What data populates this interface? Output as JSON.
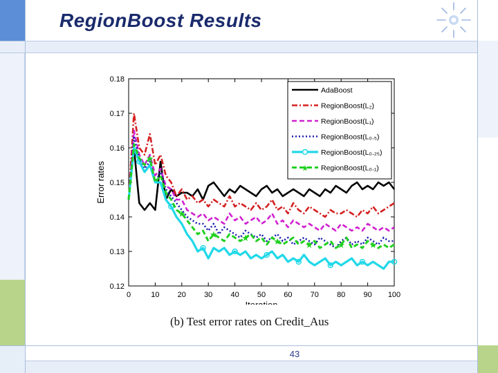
{
  "slide": {
    "title": "RegionBoost Results",
    "page_number": "43",
    "colors": {
      "accent_blue": "#5b8ed6",
      "accent_green": "#b8d48a",
      "title": "#1a2a6c"
    }
  },
  "chart_data": {
    "type": "line",
    "caption": "(b) Test error rates on Credit_Aus",
    "xlabel": "Iteration",
    "ylabel": "Error rates",
    "xlim": [
      0,
      100
    ],
    "ylim": [
      0.12,
      0.18
    ],
    "xticks": [
      "0",
      "10",
      "20",
      "30",
      "40",
      "50",
      "60",
      "70",
      "80",
      "90",
      "100"
    ],
    "yticks": [
      "0.12",
      "0.13",
      "0.14",
      "0.15",
      "0.16",
      "0.17",
      "0.18"
    ],
    "legend_position": "top-right",
    "x": [
      0,
      2,
      4,
      6,
      8,
      10,
      12,
      14,
      16,
      18,
      20,
      22,
      24,
      26,
      28,
      30,
      32,
      34,
      36,
      38,
      40,
      42,
      44,
      46,
      48,
      50,
      52,
      54,
      56,
      58,
      60,
      62,
      64,
      66,
      68,
      70,
      72,
      74,
      76,
      78,
      80,
      82,
      84,
      86,
      88,
      90,
      92,
      94,
      96,
      98,
      100
    ],
    "series": [
      {
        "name": "AdaBoost",
        "style": "solid",
        "color": "#000000",
        "values": [
          0.145,
          0.16,
          0.144,
          0.142,
          0.144,
          0.142,
          0.156,
          0.145,
          0.148,
          0.146,
          0.147,
          0.147,
          0.146,
          0.148,
          0.145,
          0.149,
          0.15,
          0.148,
          0.146,
          0.148,
          0.147,
          0.149,
          0.148,
          0.147,
          0.146,
          0.148,
          0.149,
          0.147,
          0.148,
          0.146,
          0.147,
          0.148,
          0.147,
          0.146,
          0.148,
          0.147,
          0.146,
          0.148,
          0.147,
          0.149,
          0.148,
          0.147,
          0.149,
          0.15,
          0.148,
          0.149,
          0.148,
          0.15,
          0.149,
          0.15,
          0.148
        ]
      },
      {
        "name": "RegionBoost(L₂)",
        "style": "dashdot",
        "color": "#d42020",
        "values": [
          0.145,
          0.17,
          0.16,
          0.158,
          0.164,
          0.155,
          0.158,
          0.152,
          0.15,
          0.146,
          0.148,
          0.145,
          0.146,
          0.144,
          0.145,
          0.143,
          0.145,
          0.144,
          0.143,
          0.146,
          0.143,
          0.144,
          0.143,
          0.142,
          0.144,
          0.142,
          0.143,
          0.145,
          0.142,
          0.143,
          0.141,
          0.144,
          0.142,
          0.141,
          0.143,
          0.142,
          0.141,
          0.14,
          0.142,
          0.141,
          0.141,
          0.142,
          0.141,
          0.14,
          0.142,
          0.141,
          0.143,
          0.141,
          0.142,
          0.143,
          0.144
        ]
      },
      {
        "name": "RegionBoost(L₁)",
        "style": "dashed",
        "color": "#d020d0",
        "values": [
          0.145,
          0.165,
          0.158,
          0.155,
          0.158,
          0.152,
          0.154,
          0.149,
          0.148,
          0.145,
          0.145,
          0.142,
          0.141,
          0.14,
          0.141,
          0.139,
          0.14,
          0.139,
          0.138,
          0.141,
          0.139,
          0.14,
          0.138,
          0.139,
          0.14,
          0.138,
          0.139,
          0.141,
          0.138,
          0.139,
          0.137,
          0.139,
          0.138,
          0.137,
          0.138,
          0.137,
          0.136,
          0.138,
          0.137,
          0.136,
          0.138,
          0.137,
          0.136,
          0.137,
          0.136,
          0.138,
          0.137,
          0.136,
          0.137,
          0.136,
          0.137
        ]
      },
      {
        "name": "RegionBoost(L₀.₅)",
        "style": "dotted",
        "color": "#1a1ab0",
        "values": [
          0.145,
          0.163,
          0.157,
          0.154,
          0.156,
          0.15,
          0.153,
          0.148,
          0.146,
          0.144,
          0.142,
          0.14,
          0.139,
          0.138,
          0.138,
          0.136,
          0.138,
          0.135,
          0.137,
          0.136,
          0.135,
          0.134,
          0.136,
          0.135,
          0.134,
          0.135,
          0.133,
          0.134,
          0.135,
          0.133,
          0.134,
          0.132,
          0.133,
          0.134,
          0.133,
          0.132,
          0.134,
          0.133,
          0.132,
          0.131,
          0.133,
          0.134,
          0.132,
          0.133,
          0.132,
          0.134,
          0.133,
          0.132,
          0.134,
          0.133,
          0.133
        ]
      },
      {
        "name": "RegionBoost(L₀.₂₅)",
        "style": "solid-circle",
        "color": "#20d8e8",
        "values": [
          0.145,
          0.16,
          0.156,
          0.153,
          0.155,
          0.15,
          0.15,
          0.145,
          0.143,
          0.14,
          0.138,
          0.135,
          0.133,
          0.13,
          0.131,
          0.128,
          0.131,
          0.13,
          0.131,
          0.129,
          0.13,
          0.129,
          0.13,
          0.128,
          0.129,
          0.128,
          0.129,
          0.13,
          0.128,
          0.129,
          0.127,
          0.128,
          0.127,
          0.129,
          0.127,
          0.126,
          0.127,
          0.128,
          0.126,
          0.127,
          0.126,
          0.127,
          0.128,
          0.126,
          0.127,
          0.126,
          0.127,
          0.126,
          0.125,
          0.127,
          0.127
        ]
      },
      {
        "name": "RegionBoost(L₀.₁)",
        "style": "dashed-star",
        "color": "#20d020",
        "values": [
          0.145,
          0.161,
          0.157,
          0.155,
          0.157,
          0.15,
          0.152,
          0.147,
          0.145,
          0.142,
          0.141,
          0.139,
          0.137,
          0.135,
          0.136,
          0.133,
          0.135,
          0.134,
          0.133,
          0.135,
          0.134,
          0.133,
          0.134,
          0.135,
          0.133,
          0.134,
          0.132,
          0.134,
          0.133,
          0.132,
          0.133,
          0.134,
          0.132,
          0.133,
          0.132,
          0.133,
          0.131,
          0.132,
          0.133,
          0.131,
          0.132,
          0.134,
          0.131,
          0.132,
          0.131,
          0.133,
          0.132,
          0.131,
          0.132,
          0.131,
          0.132
        ]
      }
    ]
  }
}
